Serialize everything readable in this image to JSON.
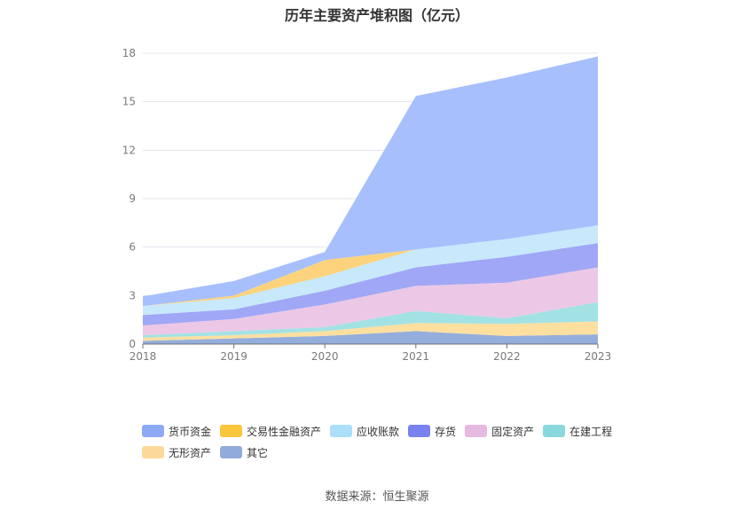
{
  "chart_data": {
    "type": "area",
    "title": "历年主要资产堆积图（亿元）",
    "categories": [
      "2018",
      "2019",
      "2020",
      "2021",
      "2022",
      "2023"
    ],
    "ylim": [
      0,
      18
    ],
    "yticks": [
      0,
      3,
      6,
      9,
      12,
      15,
      18
    ],
    "grid": true,
    "legend_position": "bottom",
    "series": [
      {
        "name": "其它",
        "color": "#93aedc",
        "values": [
          0.2,
          0.35,
          0.5,
          0.8,
          0.5,
          0.6
        ]
      },
      {
        "name": "无形资产",
        "color": "#fddfa0",
        "values": [
          0.2,
          0.2,
          0.3,
          0.5,
          0.75,
          0.8
        ]
      },
      {
        "name": "在建工程",
        "color": "#a3e2e4",
        "values": [
          0.15,
          0.25,
          0.25,
          0.75,
          0.35,
          1.2
        ]
      },
      {
        "name": "固定资产",
        "color": "#ecc8e6",
        "values": [
          0.6,
          0.75,
          1.4,
          1.55,
          2.2,
          2.15
        ]
      },
      {
        "name": "存货",
        "color": "#a0a7f6",
        "values": [
          0.65,
          0.6,
          0.85,
          1.15,
          1.6,
          1.5
        ]
      },
      {
        "name": "应收账款",
        "color": "#c7e9fb",
        "values": [
          0.55,
          0.7,
          0.9,
          1.1,
          1.1,
          1.1
        ]
      },
      {
        "name": "交易性金融资产",
        "color": "#fcd37c",
        "values": [
          0.0,
          0.15,
          1.0,
          0.0,
          0.0,
          0.0
        ]
      },
      {
        "name": "货币资金",
        "color": "#a7bffc",
        "values": [
          0.6,
          0.9,
          0.5,
          9.5,
          10.0,
          10.45
        ]
      }
    ]
  },
  "legend": {
    "row1": [
      {
        "name": "货币资金",
        "color": "#8eaaf6"
      },
      {
        "name": "交易性金融资产",
        "color": "#fbc53c"
      },
      {
        "name": "应收账款",
        "color": "#acdffa"
      },
      {
        "name": "存货",
        "color": "#7a82f0"
      },
      {
        "name": "固定资产",
        "color": "#e6b9e0"
      },
      {
        "name": "在建工程",
        "color": "#89d8db"
      }
    ],
    "row2": [
      {
        "name": "无形资产",
        "color": "#fcd999"
      },
      {
        "name": "其它",
        "color": "#91acdc"
      }
    ]
  },
  "source": "数据来源：恒生聚源"
}
